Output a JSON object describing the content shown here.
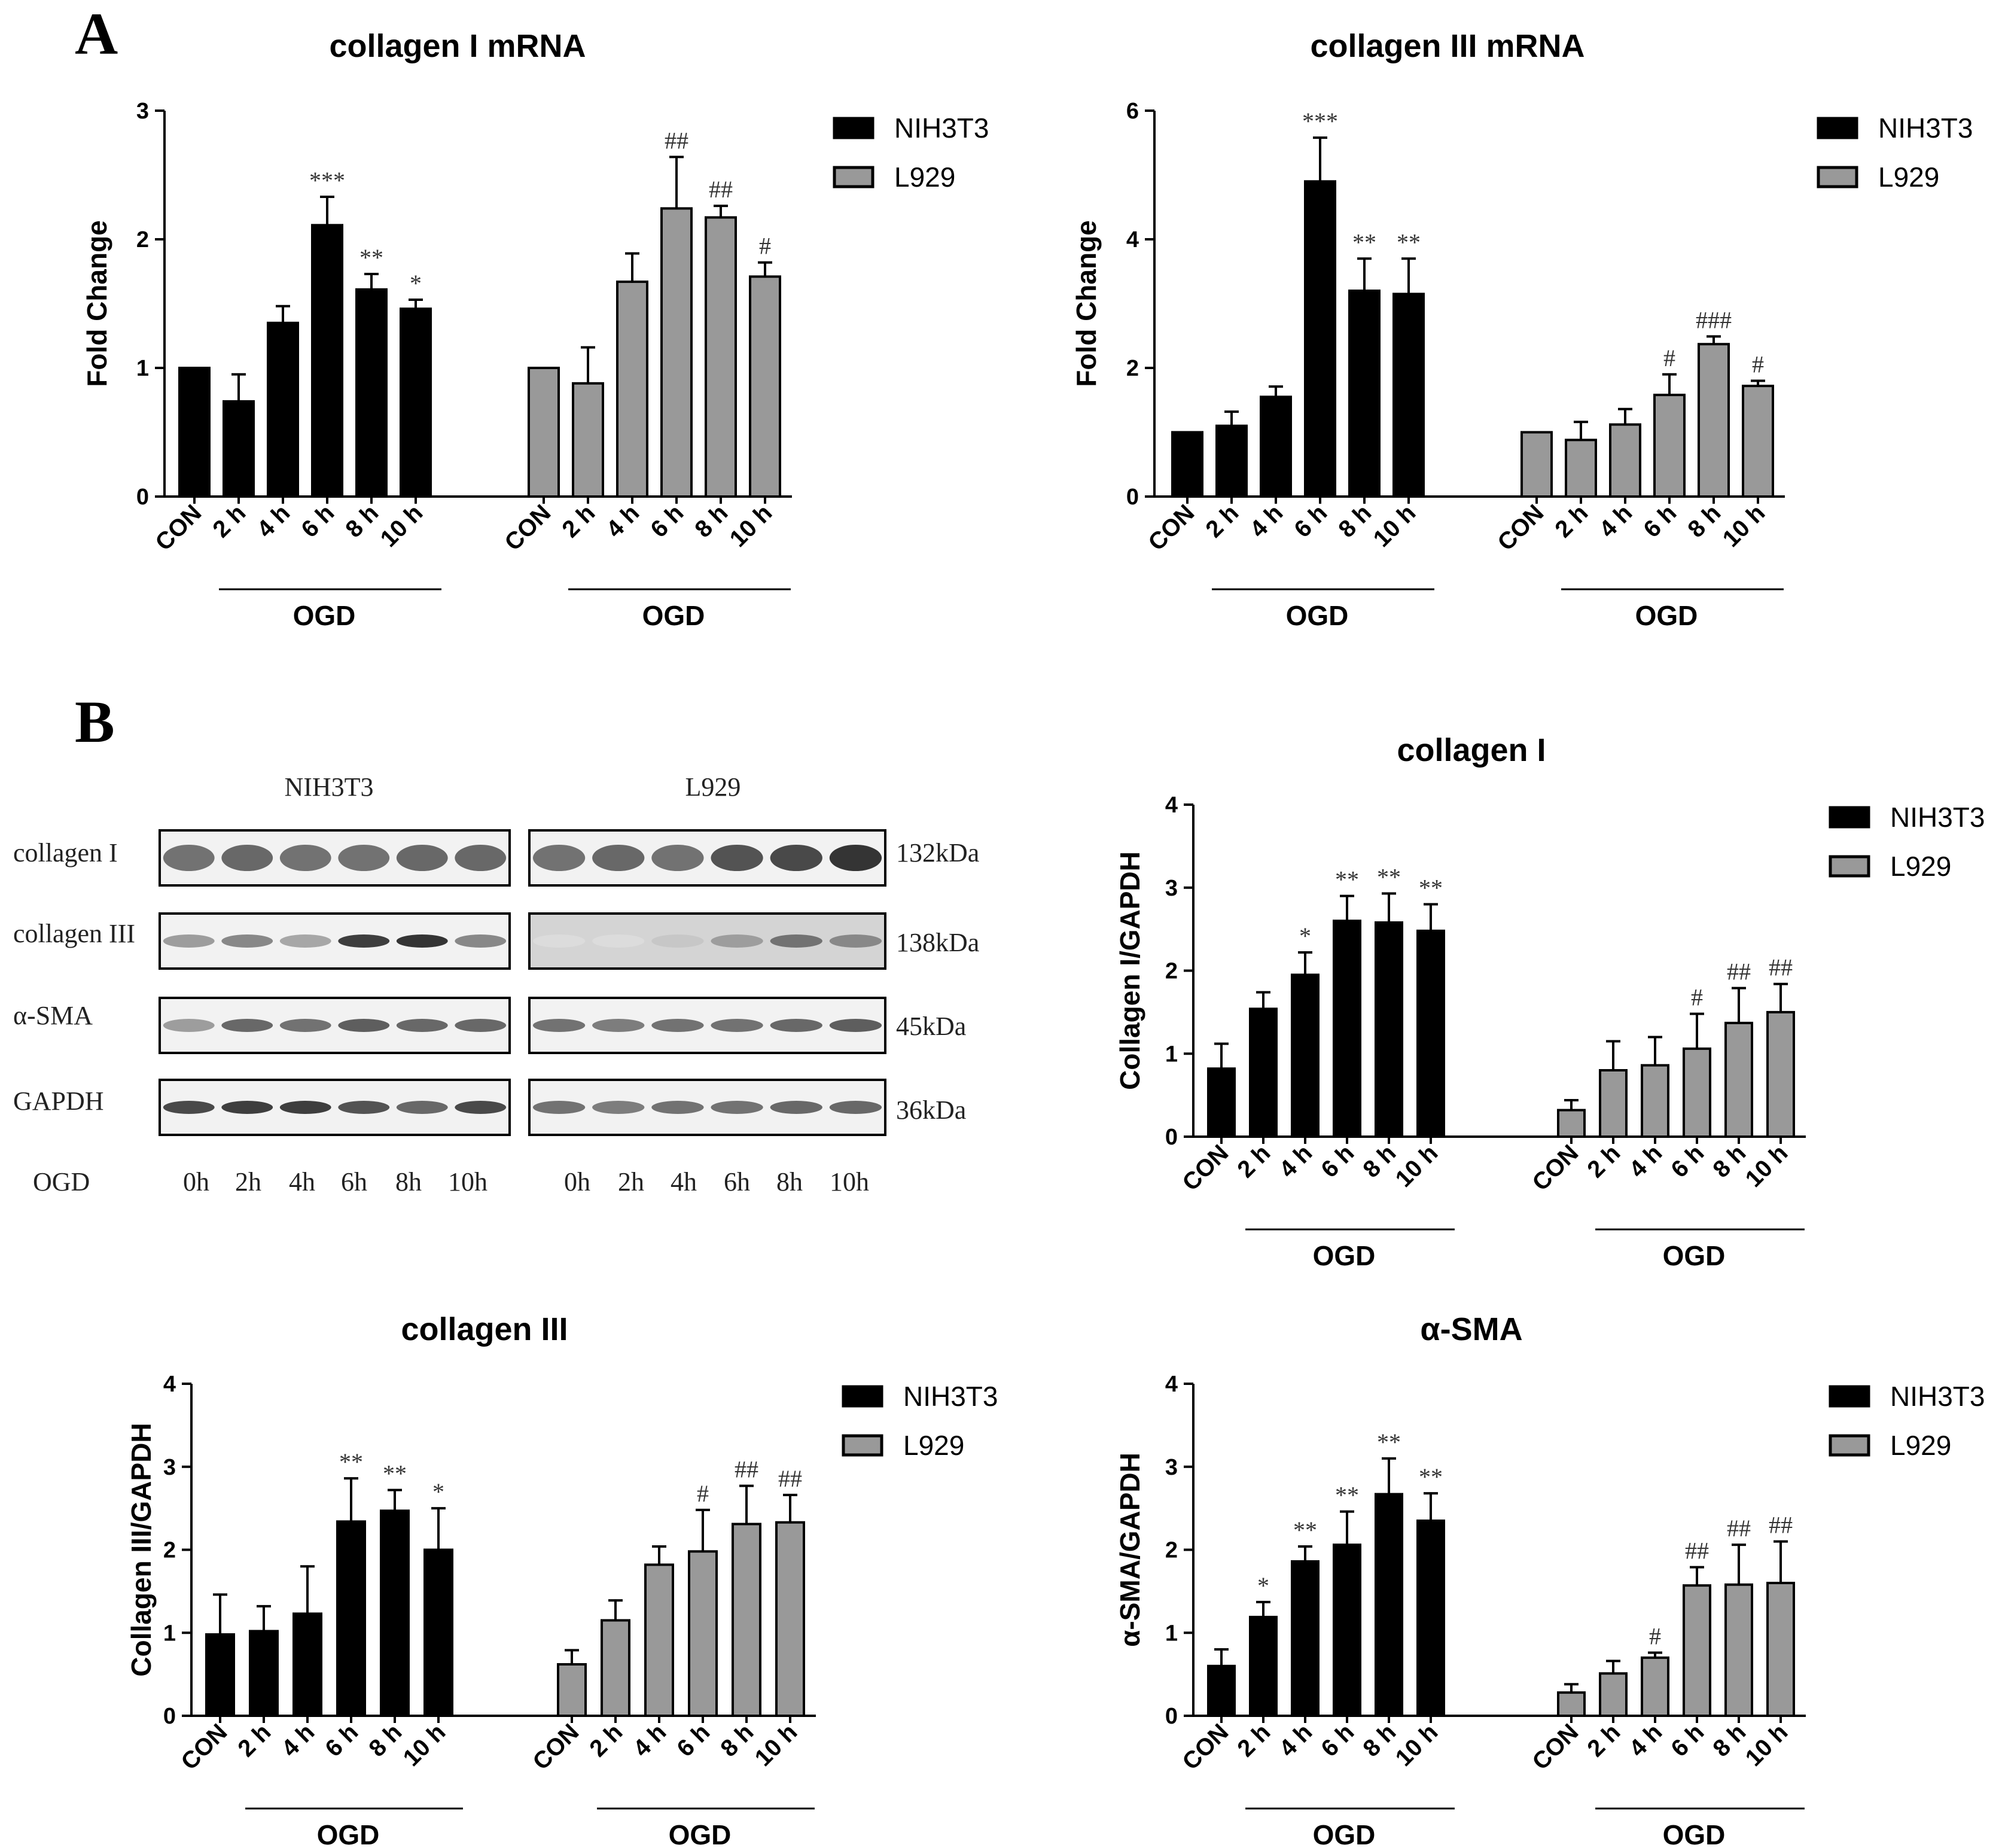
{
  "panels": {
    "A": "A",
    "B": "B"
  },
  "colors": {
    "nih": "#000000",
    "l929": "#999999",
    "axis": "#000000"
  },
  "chart_data": [
    {
      "id": "c1",
      "type": "bar",
      "title": "collagen I mRNA",
      "ylabel": "Fold Change",
      "ylim": [
        0,
        3
      ],
      "yticks": [
        0,
        1,
        2,
        3
      ],
      "categories": [
        "CON",
        "2 h",
        "4 h",
        "6 h",
        "8 h",
        "10 h"
      ],
      "group_label": "OGD",
      "legend": [
        "NIH3T3",
        "L929"
      ],
      "series": [
        {
          "name": "NIH3T3",
          "values": [
            1.0,
            0.74,
            1.35,
            2.11,
            1.61,
            1.46
          ],
          "errors": [
            0,
            0.21,
            0.13,
            0.22,
            0.12,
            0.07
          ],
          "sig": [
            "",
            "",
            "",
            "***",
            "**",
            "*"
          ]
        },
        {
          "name": "L929",
          "values": [
            1.0,
            0.88,
            1.67,
            2.24,
            2.17,
            1.71
          ],
          "errors": [
            0,
            0.28,
            0.22,
            0.4,
            0.09,
            0.11
          ],
          "sig": [
            "",
            "",
            "",
            "##",
            "##",
            "#"
          ]
        }
      ]
    },
    {
      "id": "c2",
      "type": "bar",
      "title": "collagen III mRNA",
      "ylabel": "Fold Change",
      "ylim": [
        0,
        6
      ],
      "yticks": [
        0,
        2,
        4,
        6
      ],
      "categories": [
        "CON",
        "2 h",
        "4 h",
        "6 h",
        "8 h",
        "10 h"
      ],
      "group_label": "OGD",
      "legend": [
        "NIH3T3",
        "L929"
      ],
      "series": [
        {
          "name": "NIH3T3",
          "values": [
            1.0,
            1.1,
            1.55,
            4.9,
            3.2,
            3.15
          ],
          "errors": [
            0,
            0.22,
            0.16,
            0.68,
            0.5,
            0.55
          ],
          "sig": [
            "",
            "",
            "",
            "***",
            "**",
            "**"
          ]
        },
        {
          "name": "L929",
          "values": [
            1.0,
            0.88,
            1.12,
            1.58,
            2.37,
            1.72
          ],
          "errors": [
            0,
            0.28,
            0.24,
            0.32,
            0.12,
            0.08
          ],
          "sig": [
            "",
            "",
            "",
            "#",
            "###",
            "#"
          ]
        }
      ]
    },
    {
      "id": "c3",
      "type": "bar",
      "title": "collagen I",
      "ylabel": "Collagen I/GAPDH",
      "ylim": [
        0,
        4
      ],
      "yticks": [
        0,
        1,
        2,
        3,
        4
      ],
      "categories": [
        "CON",
        "2 h",
        "4 h",
        "6 h",
        "8 h",
        "10 h"
      ],
      "group_label": "OGD",
      "legend": [
        "NIH3T3",
        "L929"
      ],
      "series": [
        {
          "name": "NIH3T3",
          "values": [
            0.82,
            1.54,
            1.95,
            2.6,
            2.58,
            2.48
          ],
          "errors": [
            0.3,
            0.2,
            0.27,
            0.3,
            0.35,
            0.32
          ],
          "sig": [
            "",
            "",
            "*",
            "**",
            "**",
            "**"
          ]
        },
        {
          "name": "L929",
          "values": [
            0.32,
            0.8,
            0.86,
            1.06,
            1.37,
            1.5
          ],
          "errors": [
            0.12,
            0.35,
            0.34,
            0.42,
            0.42,
            0.34
          ],
          "sig": [
            "",
            "",
            "",
            "#",
            "##",
            "##"
          ]
        }
      ]
    },
    {
      "id": "c4",
      "type": "bar",
      "title": "collagen III",
      "ylabel": "Collagen III/GAPDH",
      "ylim": [
        0,
        4
      ],
      "yticks": [
        0,
        1,
        2,
        3,
        4
      ],
      "categories": [
        "CON",
        "2 h",
        "4 h",
        "6 h",
        "8 h",
        "10 h"
      ],
      "group_label": "OGD",
      "legend": [
        "NIH3T3",
        "L929"
      ],
      "series": [
        {
          "name": "NIH3T3",
          "values": [
            0.98,
            1.02,
            1.23,
            2.34,
            2.47,
            2.0
          ],
          "errors": [
            0.48,
            0.3,
            0.57,
            0.52,
            0.25,
            0.5
          ],
          "sig": [
            "",
            "",
            "",
            "**",
            "**",
            "*"
          ]
        },
        {
          "name": "L929",
          "values": [
            0.62,
            1.15,
            1.82,
            1.98,
            2.31,
            2.33
          ],
          "errors": [
            0.17,
            0.24,
            0.22,
            0.5,
            0.46,
            0.33
          ],
          "sig": [
            "",
            "",
            "",
            "#",
            "##",
            "##"
          ]
        }
      ]
    },
    {
      "id": "c5",
      "type": "bar",
      "title": "α-SMA",
      "ylabel": "α-SMA/GAPDH",
      "ylim": [
        0,
        4
      ],
      "yticks": [
        0,
        1,
        2,
        3,
        4
      ],
      "categories": [
        "CON",
        "2 h",
        "4 h",
        "6 h",
        "8 h",
        "10 h"
      ],
      "group_label": "OGD",
      "legend": [
        "NIH3T3",
        "L929"
      ],
      "series": [
        {
          "name": "NIH3T3",
          "values": [
            0.6,
            1.19,
            1.86,
            2.06,
            2.67,
            2.35
          ],
          "errors": [
            0.2,
            0.18,
            0.18,
            0.4,
            0.43,
            0.33
          ],
          "sig": [
            "",
            "*",
            "**",
            "**",
            "**",
            "**"
          ]
        },
        {
          "name": "L929",
          "values": [
            0.28,
            0.51,
            0.7,
            1.57,
            1.58,
            1.6
          ],
          "errors": [
            0.1,
            0.15,
            0.06,
            0.22,
            0.48,
            0.5
          ],
          "sig": [
            "",
            "",
            "#",
            "##",
            "##",
            "##"
          ]
        }
      ]
    }
  ],
  "western_blot": {
    "headers": [
      "NIH3T3",
      "L929"
    ],
    "rows": [
      {
        "label": "collagen I",
        "kda": "132kDa"
      },
      {
        "label": "collagen III",
        "kda": "138kDa"
      },
      {
        "label": "α-SMA",
        "kda": "45kDa"
      },
      {
        "label": "GAPDH",
        "kda": "36kDa"
      }
    ],
    "row_label_bottom": "OGD",
    "lanes": [
      "0h",
      "2h",
      "4h",
      "6h",
      "8h",
      "10h"
    ],
    "bands": {
      "nih": [
        [
          0.55,
          0.6,
          0.55,
          0.55,
          0.6,
          0.6
        ],
        [
          0.35,
          0.45,
          0.3,
          0.8,
          0.85,
          0.45
        ],
        [
          0.35,
          0.6,
          0.55,
          0.65,
          0.6,
          0.6
        ],
        [
          0.75,
          0.8,
          0.8,
          0.7,
          0.6,
          0.75
        ]
      ],
      "l929": [
        [
          0.55,
          0.6,
          0.55,
          0.7,
          0.75,
          0.85
        ],
        [
          0.05,
          0.05,
          0.15,
          0.35,
          0.55,
          0.45
        ],
        [
          0.55,
          0.5,
          0.55,
          0.55,
          0.6,
          0.65
        ],
        [
          0.55,
          0.5,
          0.55,
          0.55,
          0.6,
          0.6
        ]
      ]
    }
  }
}
